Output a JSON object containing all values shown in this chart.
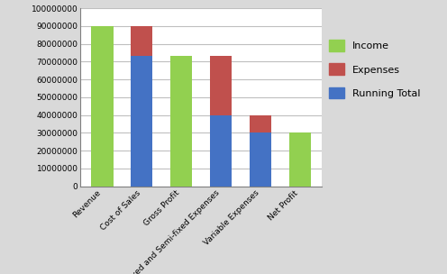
{
  "categories": [
    "Revenue",
    "Cost of Sales",
    "Gross Profit",
    "Fixed and Semi-fixed Expenses",
    "Variable Expenses",
    "Net Profit"
  ],
  "income": [
    90000000,
    0,
    73000000,
    0,
    0,
    30000000
  ],
  "expenses": [
    0,
    17000000,
    0,
    33000000,
    10000000,
    0
  ],
  "running_total": [
    0,
    73000000,
    0,
    40000000,
    30000000,
    0
  ],
  "income_color": "#92d050",
  "expenses_color": "#c0504d",
  "running_total_color": "#4472c4",
  "ylim": [
    0,
    100000000
  ],
  "yticks": [
    0,
    10000000,
    20000000,
    30000000,
    40000000,
    50000000,
    60000000,
    70000000,
    80000000,
    90000000,
    100000000
  ],
  "ytick_labels": [
    "0",
    "10000000",
    "20000000",
    "30000000",
    "40000000",
    "50000000",
    "60000000",
    "70000000",
    "80000000",
    "90000000",
    "100000000"
  ],
  "legend_labels": [
    "Income",
    "Expenses",
    "Running Total"
  ],
  "fig_bg_color": "#d9d9d9",
  "plot_bg_color": "#ffffff",
  "bar_width": 0.55,
  "grid_color": "#bfbfbf",
  "border_color": "#7f7f7f"
}
